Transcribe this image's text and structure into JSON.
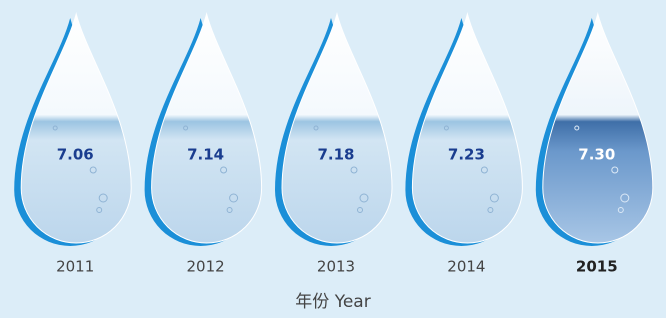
{
  "chart_data": {
    "type": "drop",
    "categories": [
      "2011",
      "2012",
      "2013",
      "2014",
      "2015"
    ],
    "values": [
      7.06,
      7.14,
      7.18,
      7.23,
      7.3
    ],
    "value_labels": [
      "7.06",
      "7.14",
      "7.18",
      "7.23",
      "7.30"
    ],
    "x_label": "年份 Year",
    "highlight": "2015"
  }
}
